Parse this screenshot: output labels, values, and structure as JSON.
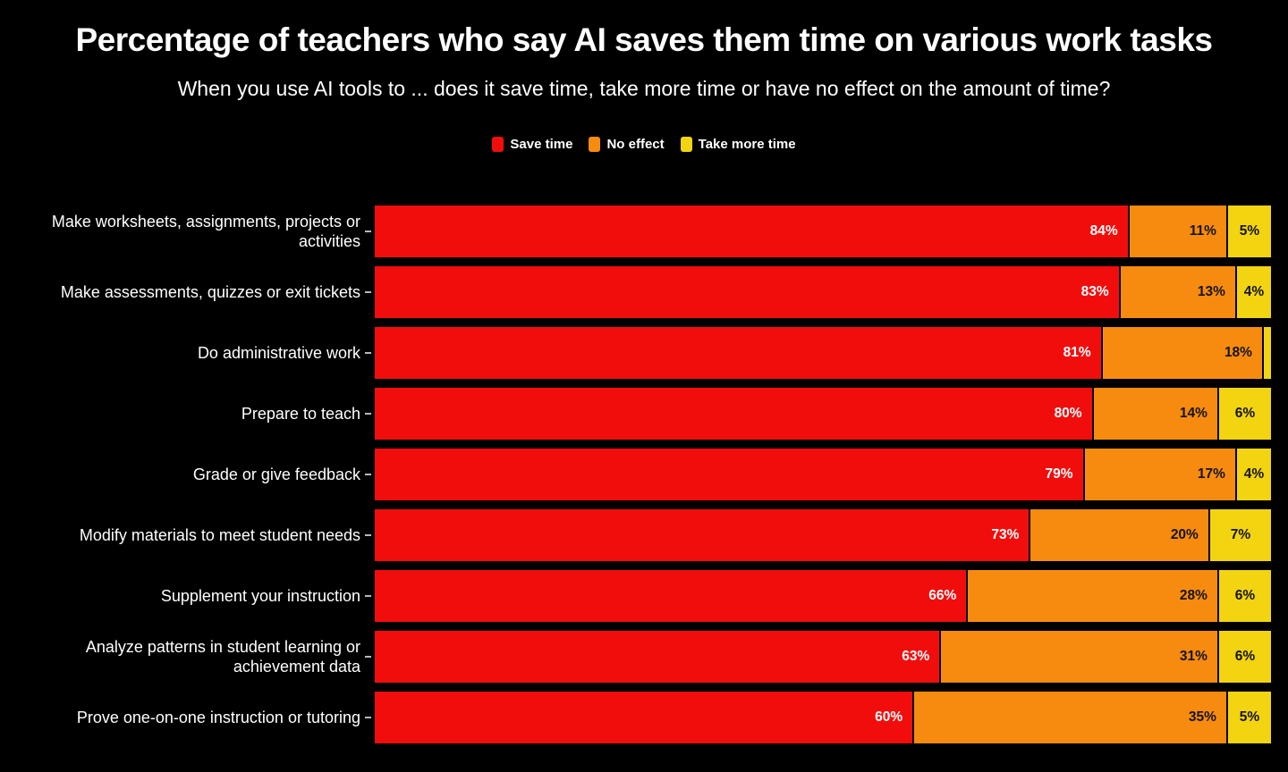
{
  "title": "Percentage of teachers who say AI saves them time on various work tasks",
  "subtitle": "When you use AI tools to ... does it save time, take more time or have no effect on the amount of time?",
  "legend": {
    "position": "top-center",
    "items": [
      "Save time",
      "No effect",
      "Take more time"
    ]
  },
  "chart_data": {
    "type": "bar",
    "orientation": "horizontal",
    "stacked": true,
    "unit": "%",
    "xlim": [
      0,
      100
    ],
    "background_color": "#000000",
    "text_color": "#ffffff",
    "grid": false,
    "value_label_min_show": 2,
    "categories": [
      "Make worksheets, assignments, projects or activities",
      "Make assessments, quizzes or exit tickets",
      "Do administrative work",
      "Prepare to teach",
      "Grade or give feedback",
      "Modify materials to meet student needs",
      "Supplement your instruction",
      "Analyze patterns in student learning or achievement data",
      "Prove one-on-one instruction or tutoring"
    ],
    "series": [
      {
        "name": "Save time",
        "color": "#f20d0d",
        "label_color": "#ffffff",
        "label_align": "right",
        "values": [
          84,
          83,
          81,
          80,
          79,
          73,
          66,
          63,
          60
        ]
      },
      {
        "name": "No effect",
        "color": "#f78b0f",
        "label_color": "#141414",
        "label_align": "right",
        "values": [
          11,
          13,
          18,
          14,
          17,
          20,
          28,
          31,
          35
        ]
      },
      {
        "name": "Take more time",
        "color": "#f2d411",
        "label_color": "#141414",
        "label_align": "center",
        "values": [
          5,
          4,
          1,
          6,
          4,
          7,
          6,
          6,
          5
        ]
      }
    ]
  }
}
